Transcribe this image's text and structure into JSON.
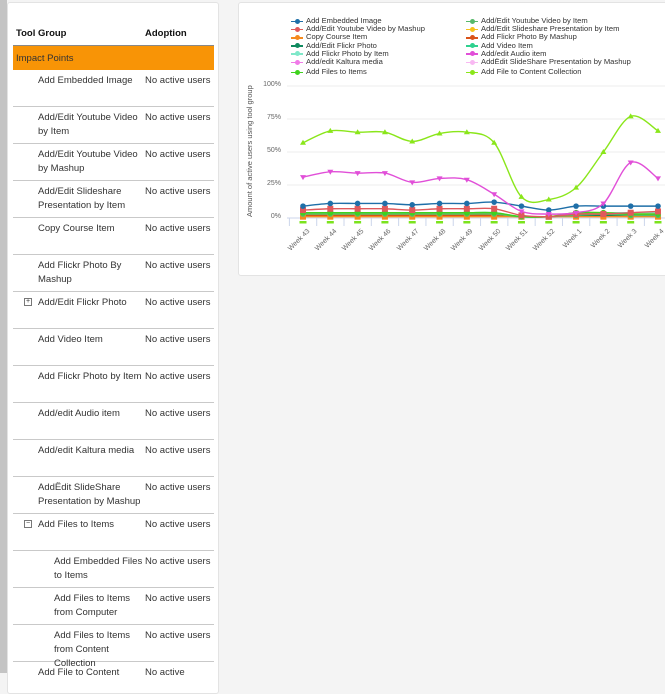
{
  "table": {
    "headers": {
      "tool_group": "Tool Group",
      "adoption": "Adoption"
    },
    "group_label": "Impact Points",
    "rows": [
      {
        "label": "Add Embedded Image",
        "adoption": "No active users",
        "level": 0,
        "expander": ""
      },
      {
        "label": "Add/Edit Youtube Video by Item",
        "adoption": "No active users",
        "level": 0,
        "expander": ""
      },
      {
        "label": "Add/Edit Youtube Video by Mashup",
        "adoption": "No active users",
        "level": 0,
        "expander": ""
      },
      {
        "label": "Add/Edit Slideshare Presentation by Item",
        "adoption": "No active users",
        "level": 0,
        "expander": ""
      },
      {
        "label": "Copy Course Item",
        "adoption": "No active users",
        "level": 0,
        "expander": ""
      },
      {
        "label": "Add Flickr Photo By Mashup",
        "adoption": "No active users",
        "level": 0,
        "expander": ""
      },
      {
        "label": "Add/Edit Flickr Photo",
        "adoption": "No active users",
        "level": 0,
        "expander": "+"
      },
      {
        "label": "Add Video Item",
        "adoption": "No active users",
        "level": 0,
        "expander": ""
      },
      {
        "label": "Add Flickr Photo by Item",
        "adoption": "No active users",
        "level": 0,
        "expander": ""
      },
      {
        "label": "Add/edit Audio item",
        "adoption": "No active users",
        "level": 0,
        "expander": ""
      },
      {
        "label": "Add/edit Kaltura media",
        "adoption": "No active users",
        "level": 0,
        "expander": ""
      },
      {
        "label": "AddËdit SlideShare Presentation by Mashup",
        "adoption": "No active users",
        "level": 0,
        "expander": ""
      },
      {
        "label": "Add Files to Items",
        "adoption": "No active users",
        "level": 0,
        "expander": "−"
      },
      {
        "label": "Add Embedded Files to Items",
        "adoption": "No active users",
        "level": 1,
        "expander": ""
      },
      {
        "label": "Add Files to Items from Computer",
        "adoption": "No active users",
        "level": 1,
        "expander": ""
      },
      {
        "label": "Add Files to Items from Content Collection",
        "adoption": "No active users",
        "level": 1,
        "expander": ""
      },
      {
        "label": "Add File to Content",
        "adoption": "No active",
        "level": 0,
        "expander": ""
      }
    ]
  },
  "colors": {
    "group_row": "#f89406"
  },
  "chart_data": {
    "type": "line",
    "title": "",
    "xlabel": "",
    "ylabel": "Amount of active users using tool group",
    "ylim": [
      0,
      100
    ],
    "yticks": [
      "0%",
      "25%",
      "50%",
      "75%",
      "100%"
    ],
    "grid": true,
    "legend_position": "top",
    "categories": [
      "Week 43",
      "Week 44",
      "Week 45",
      "Week 46",
      "Week 47",
      "Week 48",
      "Week 49",
      "Week 50",
      "Week 51",
      "Week 52",
      "Week 1",
      "Week 2",
      "Week 3",
      "Week 4"
    ],
    "series": [
      {
        "name": "Add Embedded Image",
        "color": "#1f6fa8",
        "values": [
          9,
          11,
          11,
          11,
          10,
          11,
          11,
          12,
          9,
          6,
          9,
          9,
          9,
          9
        ]
      },
      {
        "name": "Add/Edit Youtube Video by Item",
        "color": "#56b96a",
        "values": [
          3,
          3,
          3,
          3,
          3,
          3,
          3,
          3,
          1,
          1,
          2,
          3,
          2,
          2
        ]
      },
      {
        "name": "Add/Edit Youtube Video by Mashup",
        "color": "#e0595b",
        "values": [
          6,
          7,
          7,
          7,
          6,
          7,
          7,
          7,
          2,
          1,
          3,
          3,
          4,
          5
        ]
      },
      {
        "name": "Add/Edit Slideshare Presentation by Item",
        "color": "#f5c21b",
        "values": [
          3,
          3,
          3,
          3,
          3,
          3,
          3,
          3,
          1,
          1,
          4,
          4,
          3,
          3
        ]
      },
      {
        "name": "Copy Course Item",
        "color": "#f58a1f",
        "values": [
          1,
          1,
          1,
          1,
          1,
          1,
          1,
          1,
          1,
          1,
          1,
          1,
          1,
          1
        ]
      },
      {
        "name": "Add Flickr Photo By Mashup",
        "color": "#d95319",
        "values": [
          2,
          2,
          2,
          2,
          2,
          2,
          2,
          2,
          1,
          1,
          3,
          3,
          2,
          2
        ]
      },
      {
        "name": "Add/Edit Flickr Photo",
        "color": "#0f8a5f",
        "values": [
          2,
          2,
          2,
          2,
          2,
          2,
          2,
          2,
          1,
          1,
          2,
          2,
          2,
          2
        ]
      },
      {
        "name": "Add Video Item",
        "color": "#2ed18f",
        "values": [
          3,
          3,
          3,
          3,
          3,
          3,
          3,
          3,
          1,
          1,
          3,
          3,
          3,
          3
        ]
      },
      {
        "name": "Add Flickr Photo by Item",
        "color": "#7fe8c9",
        "values": [
          4,
          4,
          4,
          4,
          4,
          4,
          4,
          4,
          1,
          1,
          4,
          4,
          4,
          4
        ]
      },
      {
        "name": "Add/edit Audio item",
        "color": "#e14fd8",
        "values": [
          31,
          35,
          34,
          34,
          27,
          30,
          29,
          18,
          5,
          3,
          4,
          11,
          42,
          30
        ]
      },
      {
        "name": "Add/edit Kaltura media",
        "color": "#f07ae8",
        "values": [
          3,
          3,
          3,
          3,
          3,
          3,
          3,
          3,
          1,
          1,
          3,
          3,
          3,
          3
        ]
      },
      {
        "name": "AddËdit SlideShare Presentation by Mashup",
        "color": "#f8b8f2",
        "values": [
          2,
          2,
          2,
          2,
          2,
          2,
          2,
          2,
          1,
          1,
          2,
          2,
          2,
          2
        ]
      },
      {
        "name": "Add Files to Items",
        "color": "#3fd21e",
        "values": [
          4,
          4,
          4,
          4,
          4,
          4,
          4,
          4,
          1,
          1,
          4,
          4,
          3,
          3
        ]
      },
      {
        "name": "Add File to Content Collection",
        "color": "#8ae61a",
        "values": [
          57,
          66,
          65,
          65,
          58,
          64,
          65,
          57,
          16,
          14,
          23,
          50,
          77,
          66
        ]
      }
    ]
  }
}
